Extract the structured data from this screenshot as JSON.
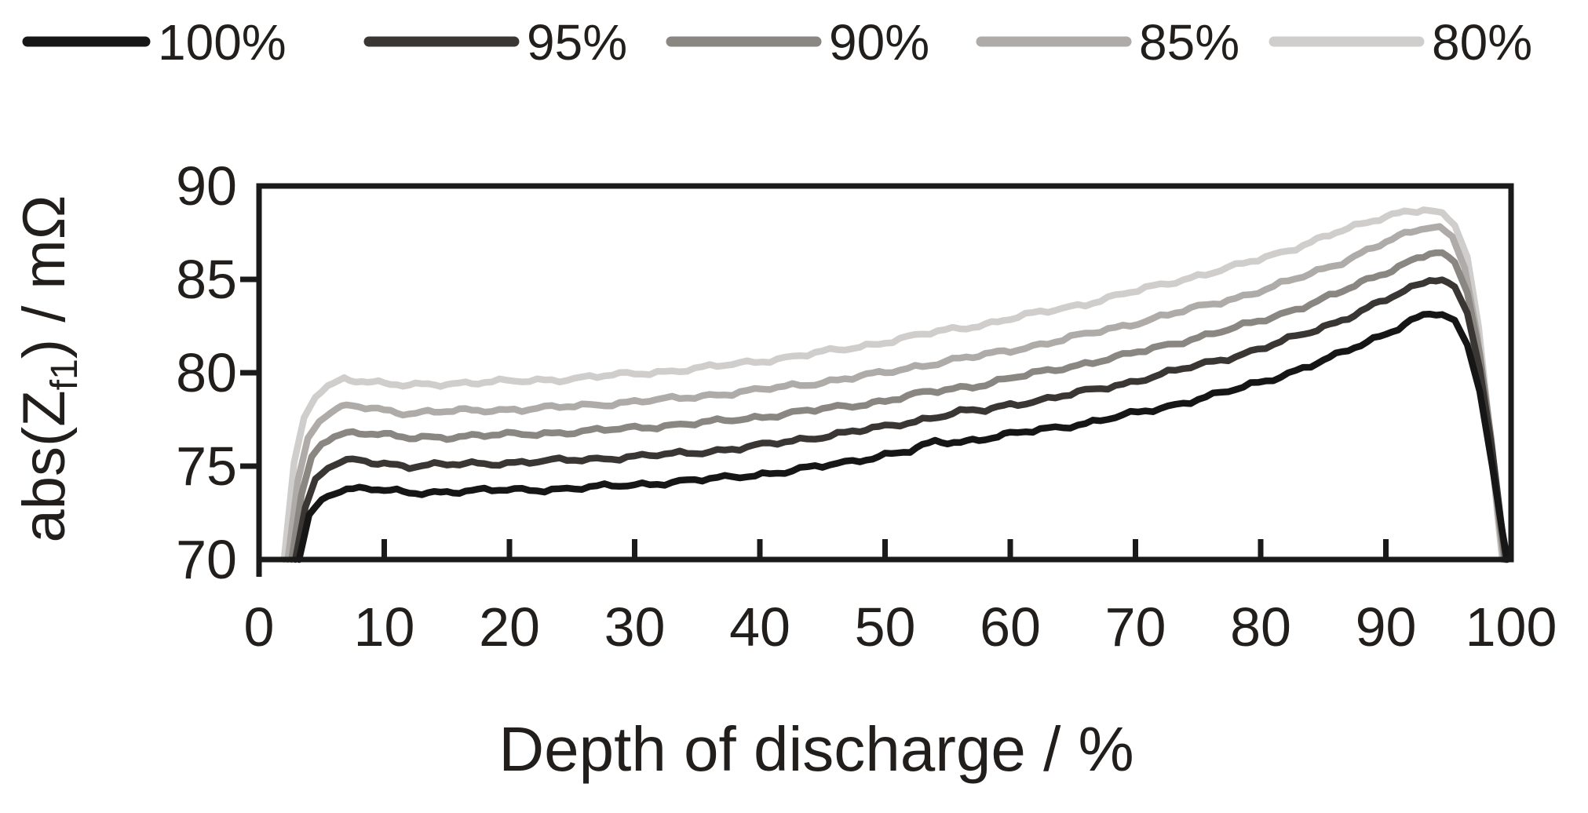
{
  "chart_data": {
    "type": "line",
    "title": "",
    "xlabel": "Depth of discharge / %",
    "ylabel": "abs(Z_f1) / mΩ",
    "ylabel_parts": {
      "pre": "abs(Z",
      "sub": "f1",
      "post": ") / mΩ"
    },
    "xlim": [
      0,
      100
    ],
    "ylim": [
      70,
      90
    ],
    "x_ticks": [
      0,
      10,
      20,
      30,
      40,
      50,
      60,
      70,
      80,
      90,
      100
    ],
    "y_ticks": [
      70,
      75,
      80,
      85,
      90
    ],
    "grid": false,
    "legend_position": "top",
    "frame_color": "#1a1a1a",
    "series": [
      {
        "name": "100%",
        "color": "#161616",
        "points": [
          [
            3.2,
            70
          ],
          [
            4,
            72.4
          ],
          [
            5,
            73.2
          ],
          [
            6,
            73.6
          ],
          [
            7,
            73.8
          ],
          [
            9,
            73.8
          ],
          [
            10.5,
            73.65
          ],
          [
            12,
            73.55
          ],
          [
            14,
            73.6
          ],
          [
            16,
            73.68
          ],
          [
            18,
            73.7
          ],
          [
            21,
            73.72
          ],
          [
            24,
            73.78
          ],
          [
            27,
            73.88
          ],
          [
            30,
            74.0
          ],
          [
            33,
            74.15
          ],
          [
            36,
            74.3
          ],
          [
            39,
            74.5
          ],
          [
            42,
            74.7
          ],
          [
            45,
            75.0
          ],
          [
            48,
            75.35
          ],
          [
            50,
            75.6
          ],
          [
            52,
            75.8
          ],
          [
            54,
            76.3
          ],
          [
            56,
            76.3
          ],
          [
            58,
            76.5
          ],
          [
            60,
            76.7
          ],
          [
            63,
            77.0
          ],
          [
            66,
            77.3
          ],
          [
            69,
            77.7
          ],
          [
            72,
            78.1
          ],
          [
            75,
            78.6
          ],
          [
            78,
            79.1
          ],
          [
            81,
            79.7
          ],
          [
            84,
            80.4
          ],
          [
            86,
            80.9
          ],
          [
            88,
            81.5
          ],
          [
            90,
            82.1
          ],
          [
            92,
            82.8
          ],
          [
            93.5,
            83.15
          ],
          [
            94.5,
            83.1
          ],
          [
            95.5,
            82.8
          ],
          [
            96.5,
            81.5
          ],
          [
            97.5,
            79.0
          ],
          [
            98.5,
            75.0
          ],
          [
            99.3,
            71.5
          ],
          [
            99.7,
            70
          ]
        ]
      },
      {
        "name": "95%",
        "color": "#3a3634",
        "points": [
          [
            2.9,
            70
          ],
          [
            3.7,
            72.8
          ],
          [
            4.5,
            74.3
          ],
          [
            5.5,
            74.9
          ],
          [
            6.5,
            75.2
          ],
          [
            8,
            75.3
          ],
          [
            10,
            75.15
          ],
          [
            12,
            75.0
          ],
          [
            14,
            75.05
          ],
          [
            16,
            75.1
          ],
          [
            18,
            75.15
          ],
          [
            21,
            75.2
          ],
          [
            24,
            75.3
          ],
          [
            27,
            75.4
          ],
          [
            30,
            75.5
          ],
          [
            33,
            75.65
          ],
          [
            36,
            75.8
          ],
          [
            39,
            76.0
          ],
          [
            42,
            76.3
          ],
          [
            45,
            76.6
          ],
          [
            48,
            76.9
          ],
          [
            50,
            77.1
          ],
          [
            53,
            77.5
          ],
          [
            56,
            77.9
          ],
          [
            58,
            78.0
          ],
          [
            60,
            78.3
          ],
          [
            63,
            78.6
          ],
          [
            66,
            79.0
          ],
          [
            69,
            79.4
          ],
          [
            72,
            79.9
          ],
          [
            75,
            80.4
          ],
          [
            78,
            80.9
          ],
          [
            81,
            81.5
          ],
          [
            84,
            82.2
          ],
          [
            86,
            82.7
          ],
          [
            88,
            83.3
          ],
          [
            90,
            83.9
          ],
          [
            92,
            84.5
          ],
          [
            93.5,
            85.0
          ],
          [
            94.5,
            85.0
          ],
          [
            95.5,
            84.6
          ],
          [
            96.5,
            83.2
          ],
          [
            97.5,
            80.2
          ],
          [
            98.5,
            75.8
          ],
          [
            99.2,
            72.0
          ],
          [
            99.6,
            70
          ]
        ]
      },
      {
        "name": "90%",
        "color": "#8a8682",
        "points": [
          [
            2.6,
            70
          ],
          [
            3.4,
            73.5
          ],
          [
            4.2,
            75.5
          ],
          [
            5,
            76.2
          ],
          [
            6,
            76.6
          ],
          [
            7,
            76.8
          ],
          [
            8.5,
            76.8
          ],
          [
            10,
            76.65
          ],
          [
            12,
            76.5
          ],
          [
            14,
            76.55
          ],
          [
            16,
            76.6
          ],
          [
            18,
            76.65
          ],
          [
            21,
            76.7
          ],
          [
            24,
            76.8
          ],
          [
            27,
            76.9
          ],
          [
            30,
            77.05
          ],
          [
            33,
            77.2
          ],
          [
            36,
            77.35
          ],
          [
            39,
            77.55
          ],
          [
            42,
            77.8
          ],
          [
            45,
            78.05
          ],
          [
            48,
            78.3
          ],
          [
            50,
            78.5
          ],
          [
            53,
            78.9
          ],
          [
            56,
            79.2
          ],
          [
            58,
            79.4
          ],
          [
            60,
            79.7
          ],
          [
            63,
            80.1
          ],
          [
            66,
            80.5
          ],
          [
            69,
            80.9
          ],
          [
            72,
            81.4
          ],
          [
            75,
            81.9
          ],
          [
            78,
            82.4
          ],
          [
            81,
            83.0
          ],
          [
            84,
            83.7
          ],
          [
            86,
            84.2
          ],
          [
            88,
            84.8
          ],
          [
            90,
            85.4
          ],
          [
            92,
            86.0
          ],
          [
            93.5,
            86.4
          ],
          [
            94.5,
            86.4
          ],
          [
            95.5,
            85.9
          ],
          [
            96.5,
            84.3
          ],
          [
            97.5,
            81.0
          ],
          [
            98.4,
            76.5
          ],
          [
            99.1,
            72.0
          ],
          [
            99.5,
            70
          ]
        ]
      },
      {
        "name": "85%",
        "color": "#aeaba8",
        "points": [
          [
            2.3,
            70
          ],
          [
            3.1,
            74.2
          ],
          [
            3.9,
            76.5
          ],
          [
            4.8,
            77.4
          ],
          [
            5.8,
            77.9
          ],
          [
            7,
            78.2
          ],
          [
            8.5,
            78.15
          ],
          [
            10,
            78.0
          ],
          [
            12,
            77.85
          ],
          [
            14,
            77.9
          ],
          [
            16,
            77.95
          ],
          [
            18,
            78.0
          ],
          [
            21,
            78.05
          ],
          [
            24,
            78.15
          ],
          [
            27,
            78.3
          ],
          [
            30,
            78.45
          ],
          [
            33,
            78.6
          ],
          [
            36,
            78.8
          ],
          [
            39,
            79.0
          ],
          [
            42,
            79.25
          ],
          [
            45,
            79.5
          ],
          [
            48,
            79.8
          ],
          [
            50,
            80.0
          ],
          [
            53,
            80.4
          ],
          [
            56,
            80.75
          ],
          [
            58,
            80.95
          ],
          [
            60,
            81.2
          ],
          [
            63,
            81.6
          ],
          [
            66,
            82.05
          ],
          [
            69,
            82.5
          ],
          [
            72,
            83.0
          ],
          [
            75,
            83.5
          ],
          [
            78,
            84.0
          ],
          [
            81,
            84.6
          ],
          [
            84,
            85.3
          ],
          [
            86,
            85.8
          ],
          [
            88,
            86.4
          ],
          [
            90,
            87.0
          ],
          [
            92,
            87.5
          ],
          [
            93.2,
            87.8
          ],
          [
            94.3,
            87.8
          ],
          [
            95.3,
            87.3
          ],
          [
            96.3,
            85.6
          ],
          [
            97.3,
            82.0
          ],
          [
            98.2,
            77.0
          ],
          [
            99,
            72.2
          ],
          [
            99.4,
            70
          ]
        ]
      },
      {
        "name": "80%",
        "color": "#cfcecc",
        "points": [
          [
            2.0,
            70
          ],
          [
            2.8,
            75.2
          ],
          [
            3.6,
            77.6
          ],
          [
            4.5,
            78.7
          ],
          [
            5.5,
            79.3
          ],
          [
            6.8,
            79.7
          ],
          [
            8.2,
            79.6
          ],
          [
            10,
            79.4
          ],
          [
            12,
            79.3
          ],
          [
            14,
            79.4
          ],
          [
            16,
            79.45
          ],
          [
            18,
            79.5
          ],
          [
            21,
            79.55
          ],
          [
            24,
            79.65
          ],
          [
            27,
            79.8
          ],
          [
            30,
            79.95
          ],
          [
            33,
            80.1
          ],
          [
            36,
            80.3
          ],
          [
            39,
            80.55
          ],
          [
            42,
            80.8
          ],
          [
            45,
            81.1
          ],
          [
            48,
            81.4
          ],
          [
            50,
            81.65
          ],
          [
            53,
            82.05
          ],
          [
            56,
            82.4
          ],
          [
            58,
            82.6
          ],
          [
            60,
            82.9
          ],
          [
            63,
            83.3
          ],
          [
            66,
            83.7
          ],
          [
            69,
            84.2
          ],
          [
            72,
            84.7
          ],
          [
            75,
            85.2
          ],
          [
            78,
            85.7
          ],
          [
            81,
            86.3
          ],
          [
            84,
            87.0
          ],
          [
            86,
            87.5
          ],
          [
            88,
            87.9
          ],
          [
            90,
            88.4
          ],
          [
            91.5,
            88.65
          ],
          [
            93,
            88.75
          ],
          [
            94.5,
            88.5
          ],
          [
            95.5,
            87.9
          ],
          [
            96.5,
            86.2
          ],
          [
            97.4,
            82.5
          ],
          [
            98.2,
            77.5
          ],
          [
            98.9,
            72.5
          ],
          [
            99.3,
            70
          ]
        ]
      }
    ]
  }
}
